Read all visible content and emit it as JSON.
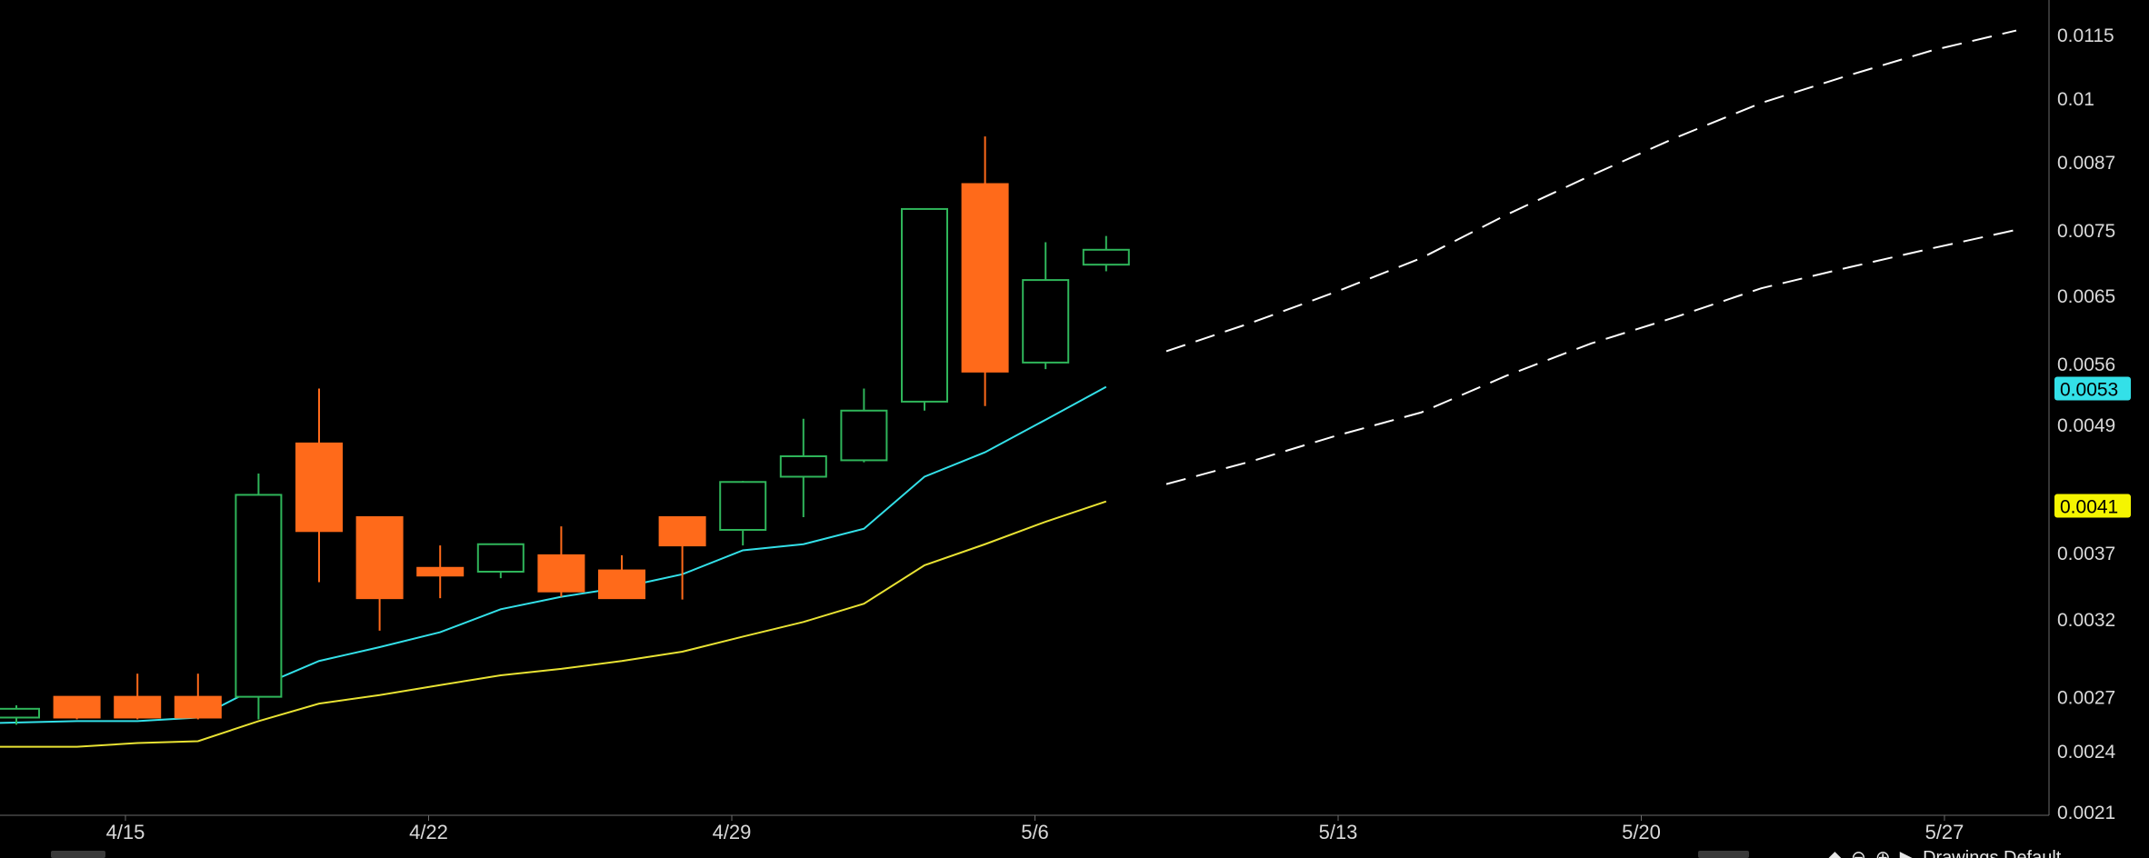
{
  "chart_data": {
    "type": "candlestick",
    "x_labels": [
      "4/15",
      "4/22",
      "4/29",
      "5/6",
      "5/13",
      "5/20",
      "5/27"
    ],
    "y_ticks": [
      "0.0115",
      "0.01",
      "0.0087",
      "0.0075",
      "0.0065",
      "0.0056",
      "0.0049",
      "0.0041",
      "0.0037",
      "0.0032",
      "0.0027",
      "0.0024",
      "0.0021"
    ],
    "y_scale": "log",
    "y_range": [
      0.0021,
      0.0125
    ],
    "grid": false,
    "candles": [
      {
        "open": 0.00258,
        "high": 0.00265,
        "low": 0.00254,
        "close": 0.00263
      },
      {
        "open": 0.0027,
        "high": 0.0027,
        "low": 0.00257,
        "close": 0.00258
      },
      {
        "open": 0.0027,
        "high": 0.00284,
        "low": 0.00257,
        "close": 0.00258
      },
      {
        "open": 0.0027,
        "high": 0.00284,
        "low": 0.00257,
        "close": 0.00258
      },
      {
        "open": 0.0027,
        "high": 0.0044,
        "low": 0.00257,
        "close": 0.0042
      },
      {
        "open": 0.0047,
        "high": 0.0053,
        "low": 0.00347,
        "close": 0.00388
      },
      {
        "open": 0.004,
        "high": 0.004,
        "low": 0.00312,
        "close": 0.00335
      },
      {
        "open": 0.00358,
        "high": 0.00376,
        "low": 0.00335,
        "close": 0.00352
      },
      {
        "open": 0.00355,
        "high": 0.00377,
        "low": 0.0035,
        "close": 0.00377
      },
      {
        "open": 0.00368,
        "high": 0.00392,
        "low": 0.00336,
        "close": 0.0034
      },
      {
        "open": 0.00356,
        "high": 0.00368,
        "low": 0.00335,
        "close": 0.00335
      },
      {
        "open": 0.004,
        "high": 0.004,
        "low": 0.00334,
        "close": 0.00376
      },
      {
        "open": 0.00389,
        "high": 0.00433,
        "low": 0.00376,
        "close": 0.00432
      },
      {
        "open": 0.00437,
        "high": 0.00496,
        "low": 0.004,
        "close": 0.00457
      },
      {
        "open": 0.00453,
        "high": 0.0053,
        "low": 0.00451,
        "close": 0.00505
      },
      {
        "open": 0.00515,
        "high": 0.00785,
        "low": 0.00505,
        "close": 0.00785
      },
      {
        "open": 0.00829,
        "high": 0.0092,
        "low": 0.0051,
        "close": 0.0055
      },
      {
        "open": 0.00561,
        "high": 0.0073,
        "low": 0.00553,
        "close": 0.00672
      },
      {
        "open": 0.00695,
        "high": 0.0074,
        "low": 0.00685,
        "close": 0.00718
      }
    ],
    "series": [
      {
        "color": "#33e0e8",
        "values": [
          0.00255,
          0.00256,
          0.00256,
          0.00258,
          0.00276,
          0.00292,
          0.00301,
          0.00311,
          0.00327,
          0.00336,
          0.00343,
          0.00353,
          0.00372,
          0.00377,
          0.0039,
          0.00437,
          0.00461,
          0.00495,
          0.00532
        ]
      },
      {
        "color": "#e8e233",
        "values": [
          0.00242,
          0.00242,
          0.00244,
          0.00245,
          0.00256,
          0.00266,
          0.00271,
          0.00277,
          0.00283,
          0.00287,
          0.00292,
          0.00298,
          0.00308,
          0.00318,
          0.00331,
          0.0036,
          0.00377,
          0.00396,
          0.00414
        ]
      }
    ],
    "projection_bands": [
      {
        "values": [
          0.00575,
          0.00612,
          0.00655,
          0.00705,
          0.00775,
          0.00845,
          0.00918,
          0.0099,
          0.0105,
          0.0111,
          0.0116
        ]
      },
      {
        "values": [
          0.0043,
          0.00452,
          0.00478,
          0.00503,
          0.00545,
          0.00585,
          0.0062,
          0.0066,
          0.0069,
          0.0072,
          0.0075
        ]
      }
    ],
    "price_tags": [
      {
        "label": "0.0053",
        "value": 0.0053,
        "background": "#33e0e8"
      },
      {
        "label": "0.0041",
        "value": 0.0041,
        "background": "#f5f500"
      }
    ],
    "colors": {
      "up_candle": "#2fb55a",
      "down_candle": "#ff6a1a",
      "axis_text": "#d9d9d9",
      "axis_line": "#6a6a6a",
      "projection": "#ffffff"
    }
  },
  "controls": {
    "icons": [
      "chevron-icon",
      "diamond-icon",
      "circle-icon",
      "circle-icon",
      "play-icon"
    ],
    "label": "Drawings  Default"
  }
}
